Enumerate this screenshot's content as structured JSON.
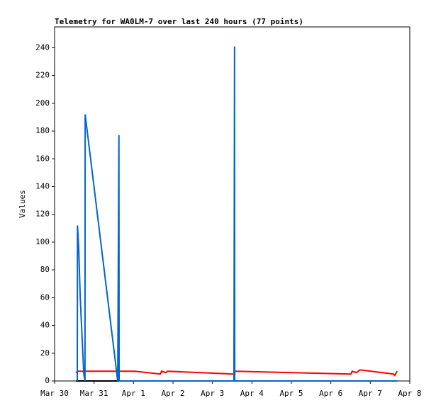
{
  "chart_data": {
    "type": "line",
    "title": "Telemetry for WA0LM-7 over last 240 hours (77 points)",
    "y_label": "Values",
    "xlim": [
      0,
      9
    ],
    "ylim": [
      0,
      255
    ],
    "xticks": [
      {
        "value": 0,
        "label": "Mar 30"
      },
      {
        "value": 1,
        "label": "Mar 31"
      },
      {
        "value": 2,
        "label": "Apr 1"
      },
      {
        "value": 3,
        "label": "Apr 2"
      },
      {
        "value": 4,
        "label": "Apr 3"
      },
      {
        "value": 5,
        "label": "Apr 4"
      },
      {
        "value": 6,
        "label": "Apr 5"
      },
      {
        "value": 7,
        "label": "Apr 6"
      },
      {
        "value": 8,
        "label": "Apr 7"
      },
      {
        "value": 9,
        "label": "Apr 8"
      }
    ],
    "yticks": [
      0,
      20,
      40,
      60,
      80,
      100,
      120,
      140,
      160,
      180,
      200,
      220,
      240
    ],
    "series": [
      {
        "color": "#000000",
        "x": [
          0.54,
          8.68
        ],
        "values": [
          0,
          0
        ]
      },
      {
        "color": "#ff0000",
        "x": [
          0.54,
          0.59,
          2.03,
          2.68,
          2.71,
          2.82,
          2.86,
          4.54,
          4.58,
          7.51,
          7.54,
          7.65,
          7.74,
          8.59,
          8.62,
          8.68
        ],
        "values": [
          6,
          7,
          7,
          5,
          7,
          6,
          7,
          5,
          7,
          5,
          7,
          6,
          8,
          5,
          4,
          7
        ]
      },
      {
        "color": "#0066cc",
        "x": [
          0.575,
          0.58,
          0.61,
          0.65,
          0.74,
          0.77,
          0.775,
          1.6,
          1.63,
          1.635,
          4.545,
          4.56,
          4.565,
          8.68
        ],
        "values": [
          0,
          112,
          97,
          60,
          5,
          0,
          192,
          0,
          177,
          0,
          0,
          241,
          0,
          0
        ]
      }
    ]
  }
}
